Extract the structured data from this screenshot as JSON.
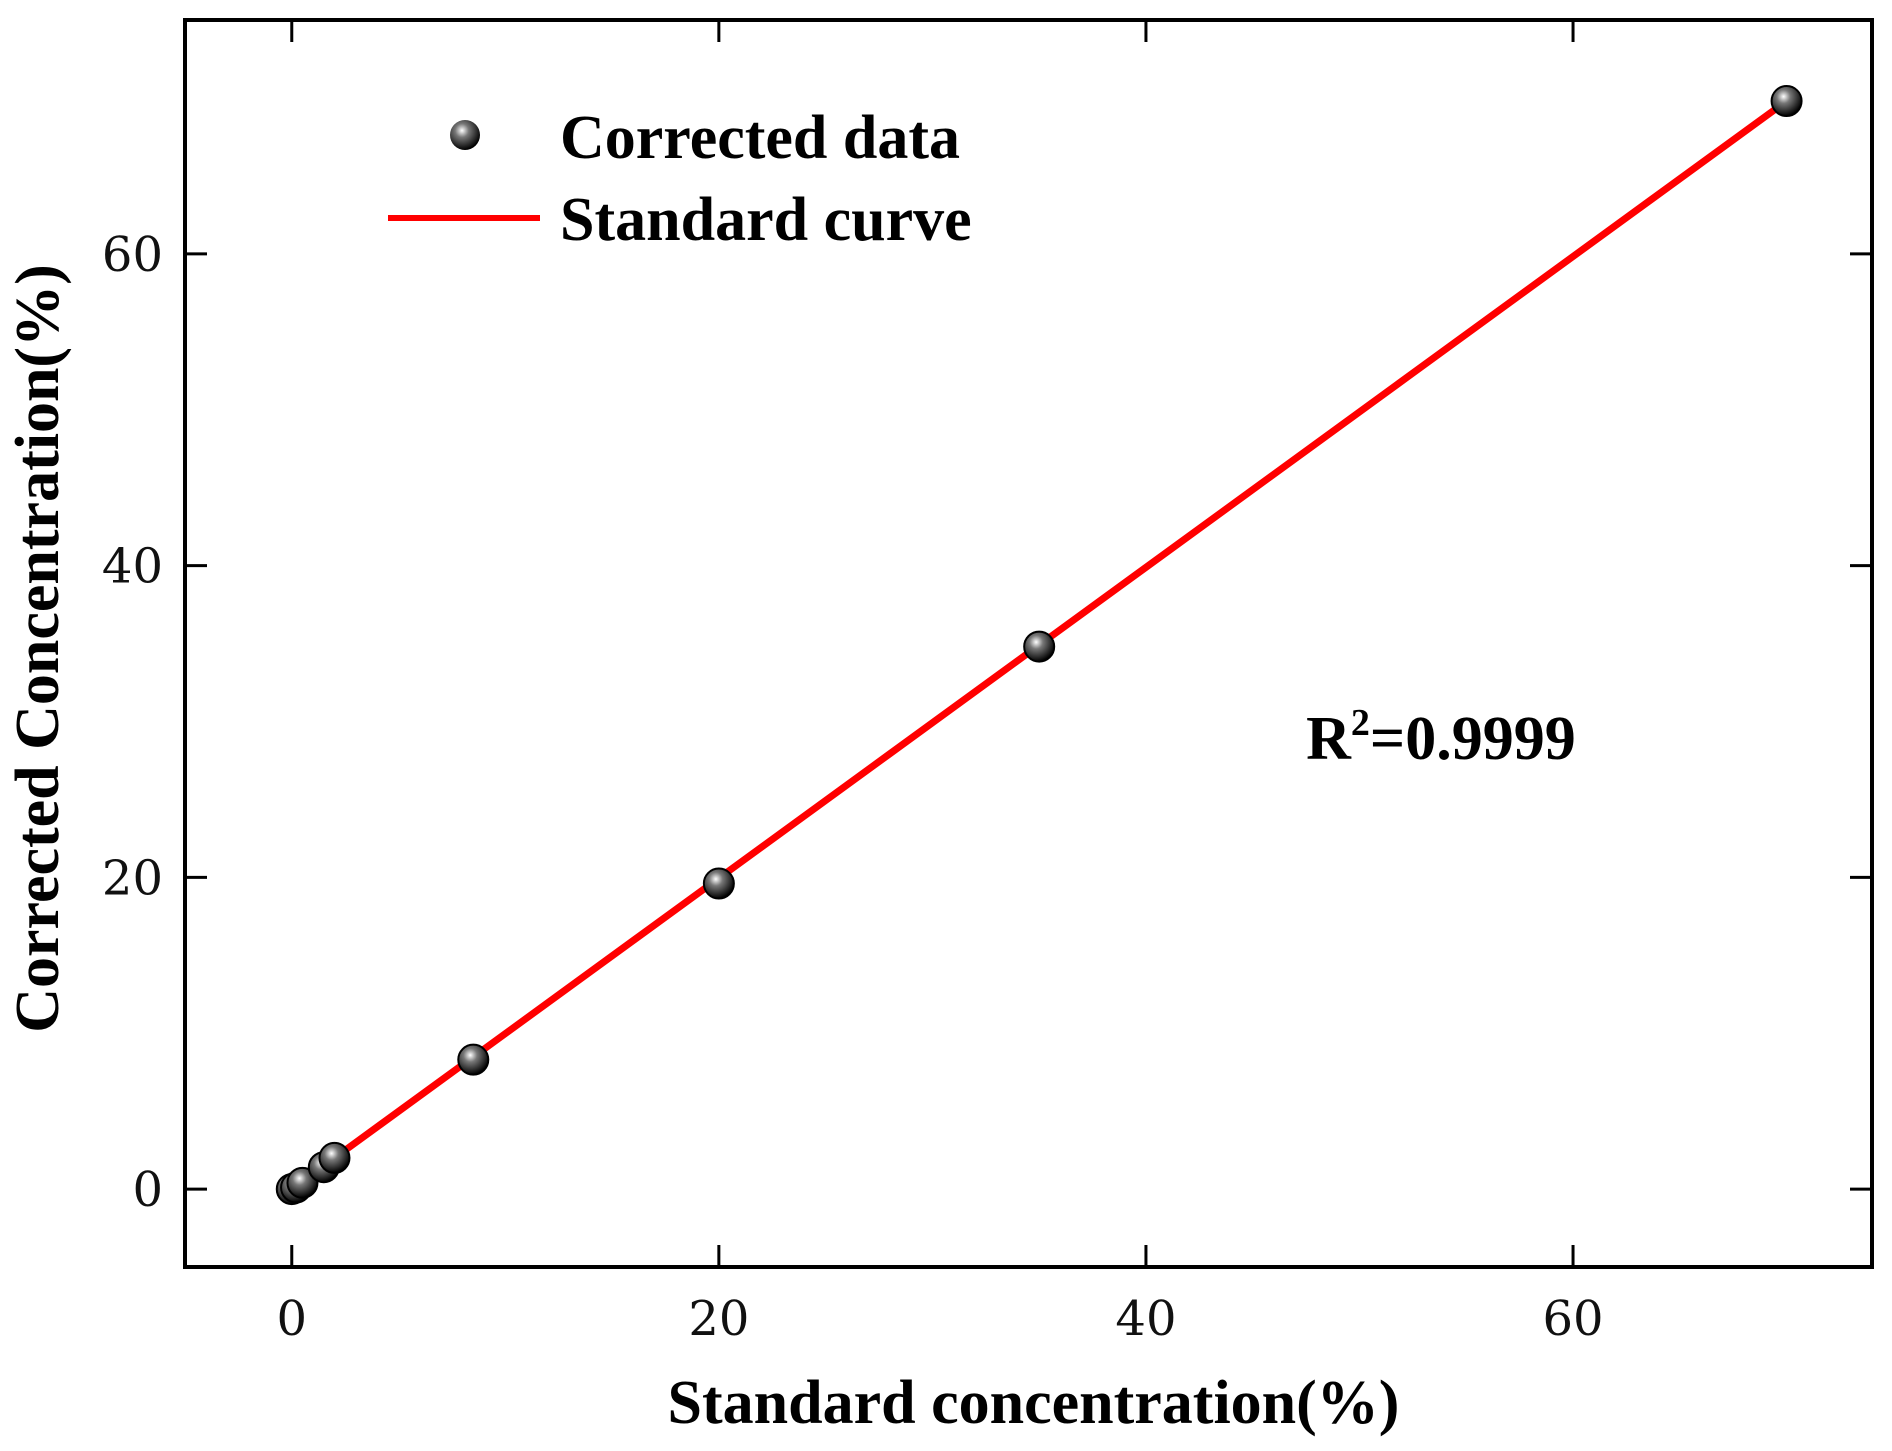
{
  "chart_data": {
    "type": "scatter",
    "title": "",
    "xlabel": "Standard concentration(%)",
    "ylabel": "Corrected Concentration(%)",
    "xlim": [
      -5,
      74
    ],
    "ylim": [
      -5,
      75
    ],
    "xticks": [
      0,
      20,
      40,
      60
    ],
    "yticks": [
      0,
      20,
      40,
      60
    ],
    "xtick_labels": [
      "0",
      "20",
      "40",
      "60"
    ],
    "ytick_labels": [
      "0",
      "20",
      "40",
      "60"
    ],
    "grid": false,
    "legend_position": "top-left",
    "series": [
      {
        "name": "Corrected data",
        "kind": "scatter",
        "color": "#000000",
        "x": [
          0,
          0.2,
          0.5,
          1.5,
          2.0,
          8.5,
          20.0,
          35.0,
          70.0
        ],
        "y": [
          0,
          0.1,
          0.4,
          1.4,
          2.0,
          8.3,
          19.6,
          34.8,
          69.8
        ]
      },
      {
        "name": "Standard curve",
        "kind": "line",
        "color": "#ff0000",
        "x": [
          0,
          70.0
        ],
        "y": [
          0,
          69.8
        ]
      }
    ],
    "annotations": [
      {
        "base": "R",
        "sup": "2",
        "rest": "=0.9999",
        "x": 47.5,
        "y": 29
      }
    ]
  }
}
